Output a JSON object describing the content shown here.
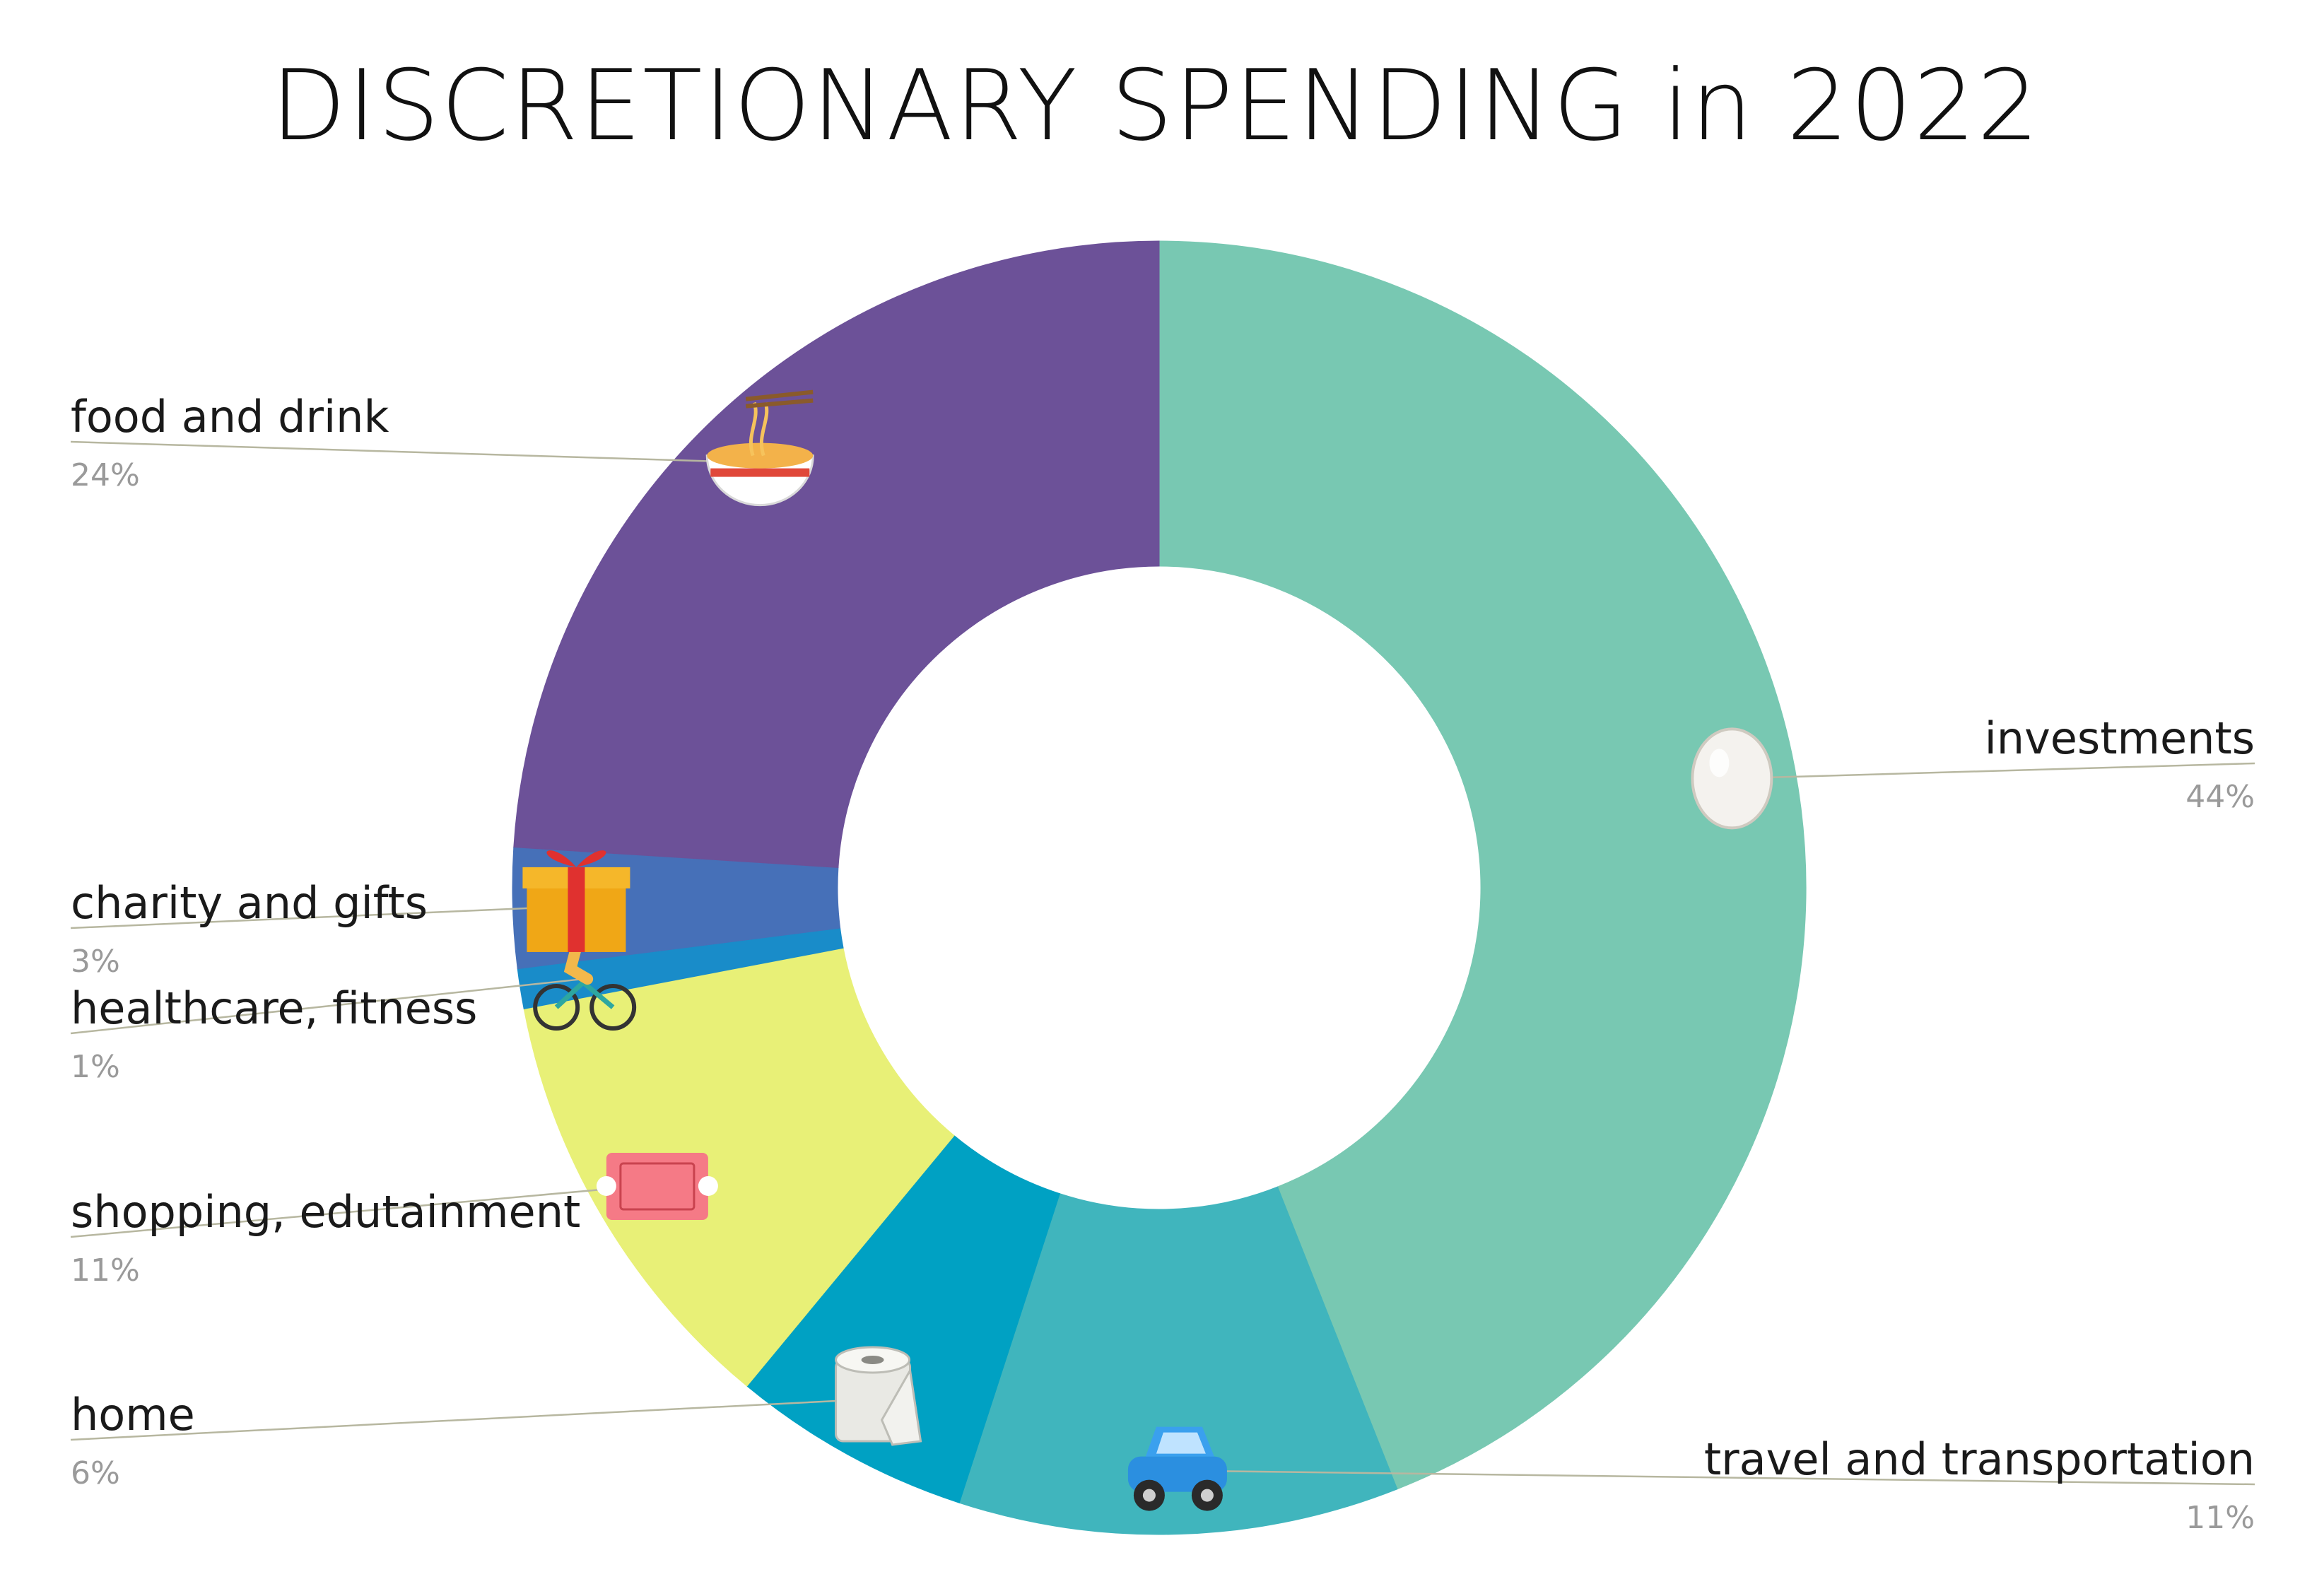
{
  "chart_data": {
    "type": "pie",
    "donut": true,
    "title": "DISCRETIONARY SPENDING in 2022",
    "slices": [
      {
        "label": "investments",
        "value_label": "44%",
        "value": 44,
        "color": "#78c8b2",
        "icon": "egg-icon"
      },
      {
        "label": "travel and transportation",
        "value_label": "11%",
        "value": 11,
        "color": "#40b5bd",
        "icon": "car-icon"
      },
      {
        "label": "home",
        "value_label": "6%",
        "value": 6,
        "color": "#00a1c3",
        "icon": "toilet-paper-icon"
      },
      {
        "label": "shopping, edutainment",
        "value_label": "11%",
        "value": 11,
        "color": "#e8f077",
        "icon": "ticket-icon"
      },
      {
        "label": "healthcare, fitness",
        "value_label": "1%",
        "value": 1,
        "color": "#198cc9",
        "icon": "cyclist-icon"
      },
      {
        "label": "charity and gifts",
        "value_label": "3%",
        "value": 3,
        "color": "#4670b8",
        "icon": "gift-icon"
      },
      {
        "label": "food and drink",
        "value_label": "24%",
        "value": 24,
        "color": "#6c5198",
        "icon": "noodle-bowl-icon"
      }
    ],
    "legend": "none"
  }
}
